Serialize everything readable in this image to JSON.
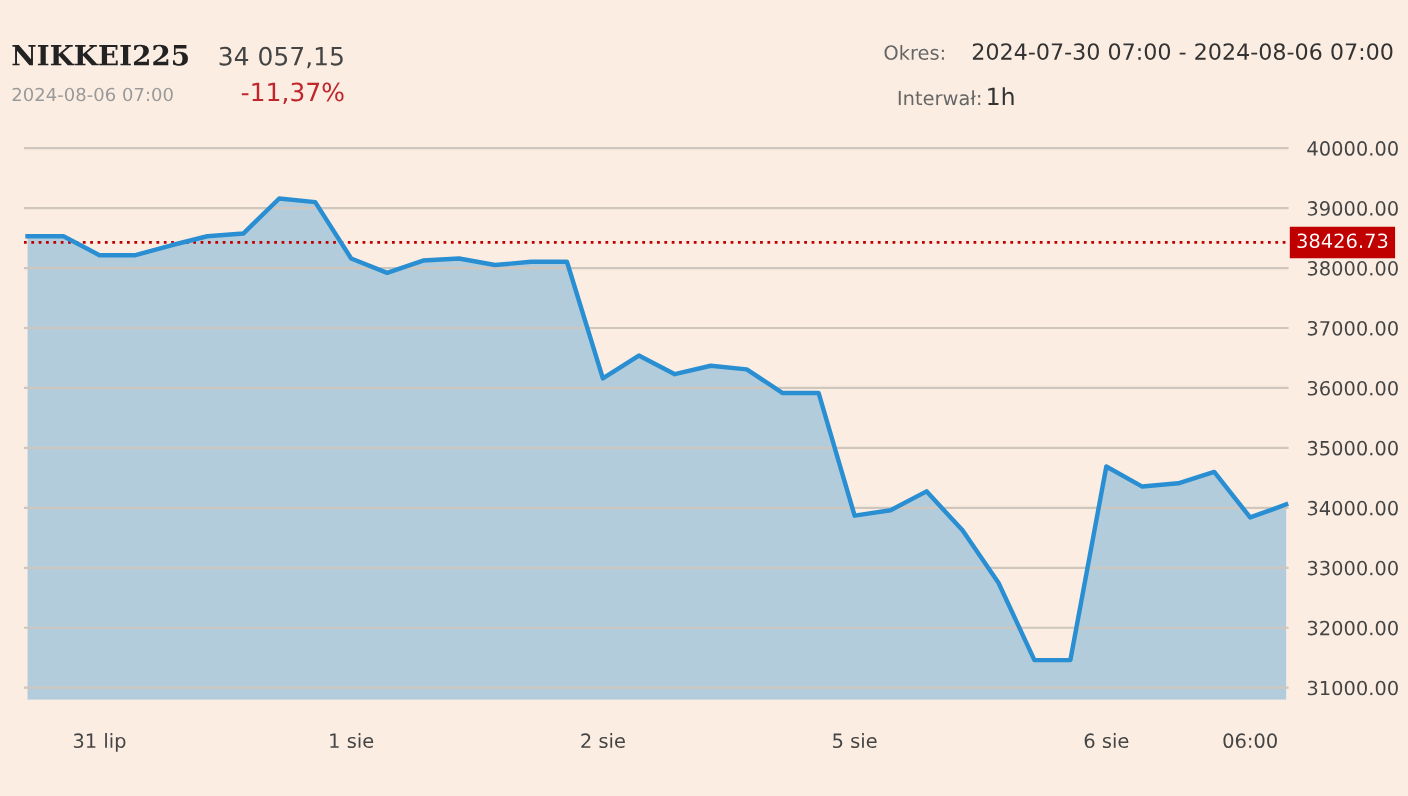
{
  "chart_data": {
    "type": "area",
    "title": "NIKKEI225",
    "subtitle": "2024-08-06 07:00",
    "annotations": [
      "34 057,15",
      "-11,37%",
      "Okres:",
      "2024-07-30 07:00 - 2024-08-06 07:00",
      "Interwał:",
      "1h"
    ],
    "categories": [
      null,
      null,
      "31 lip",
      null,
      null,
      null,
      null,
      null,
      null,
      "1 sie",
      null,
      null,
      null,
      null,
      null,
      null,
      "2 sie",
      null,
      null,
      null,
      null,
      null,
      null,
      "5 sie",
      null,
      null,
      null,
      null,
      null,
      null,
      "6 sie",
      null,
      null,
      null,
      "06:00",
      null
    ],
    "series": [
      {
        "color": "#2a8fd2",
        "values": [
          38530,
          38530,
          38215,
          38215,
          38380,
          38530,
          38575,
          39160,
          39100,
          38160,
          37920,
          38125,
          38160,
          38050,
          38105,
          38105,
          36160,
          36540,
          36230,
          36370,
          36310,
          35915,
          35915,
          33870,
          33960,
          34275,
          33625,
          32750,
          31460,
          31460,
          34690,
          34355,
          34410,
          34600,
          33840,
          34057
        ]
      }
    ],
    "ylim": [
      30800,
      40400
    ],
    "yticks": [
      {
        "value": 31000,
        "label": "31000.00"
      },
      {
        "value": 32000,
        "label": "32000.00"
      },
      {
        "value": 33000,
        "label": "33000.00"
      },
      {
        "value": 34000,
        "label": "34000.00"
      },
      {
        "value": 35000,
        "label": "35000.00"
      },
      {
        "value": 36000,
        "label": "36000.00"
      },
      {
        "value": 37000,
        "label": "37000.00"
      },
      {
        "value": 38000,
        "label": "38000.00"
      },
      {
        "value": 39000,
        "label": "39000.00"
      },
      {
        "value": 40000,
        "label": "40000.00"
      }
    ],
    "ref_lines": [
      {
        "axis": "y",
        "value": 38426.73,
        "label": "38426.73",
        "color": "#c00000",
        "line_style": "dotted"
      }
    ],
    "grid": "y",
    "legend": false,
    "marker": "none",
    "line_style": "solid"
  }
}
